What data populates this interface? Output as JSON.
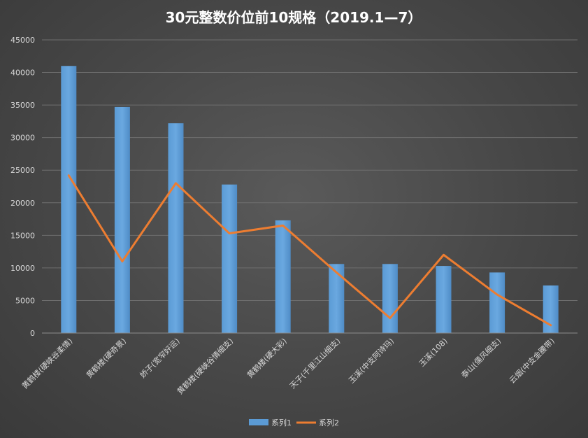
{
  "chart_data": {
    "type": "bar",
    "title": "30元整数价位前10规格（2019.1—7）",
    "categories": [
      "黄鹤楼(硬峡谷柔情)",
      "黄鹤楼(硬奇景)",
      "娇子(宽窄好运)",
      "黄鹤楼(硬峡谷情细支)",
      "黄鹤楼(硬大彩)",
      "天子(千里江山细支)",
      "玉溪(中支阿诗玛)",
      "玉溪(108)",
      "泰山(儒风细支)",
      "云烟(中支金腰带)"
    ],
    "series": [
      {
        "name": "系列1",
        "type": "bar",
        "color": "#5b9bd5",
        "values": [
          41000,
          34700,
          32200,
          22800,
          17300,
          10600,
          10600,
          10300,
          9300,
          7300
        ]
      },
      {
        "name": "系列2",
        "type": "line",
        "color": "#ed7d31",
        "values": [
          24200,
          11000,
          23000,
          15300,
          16500,
          9300,
          2300,
          12000,
          5900,
          1200
        ]
      }
    ],
    "ylim": [
      0,
      45000
    ],
    "yticks": [
      "0",
      "5000",
      "10000",
      "15000",
      "20000",
      "25000",
      "30000",
      "35000",
      "40000",
      "45000"
    ],
    "grid": true,
    "legend": "bottom"
  }
}
